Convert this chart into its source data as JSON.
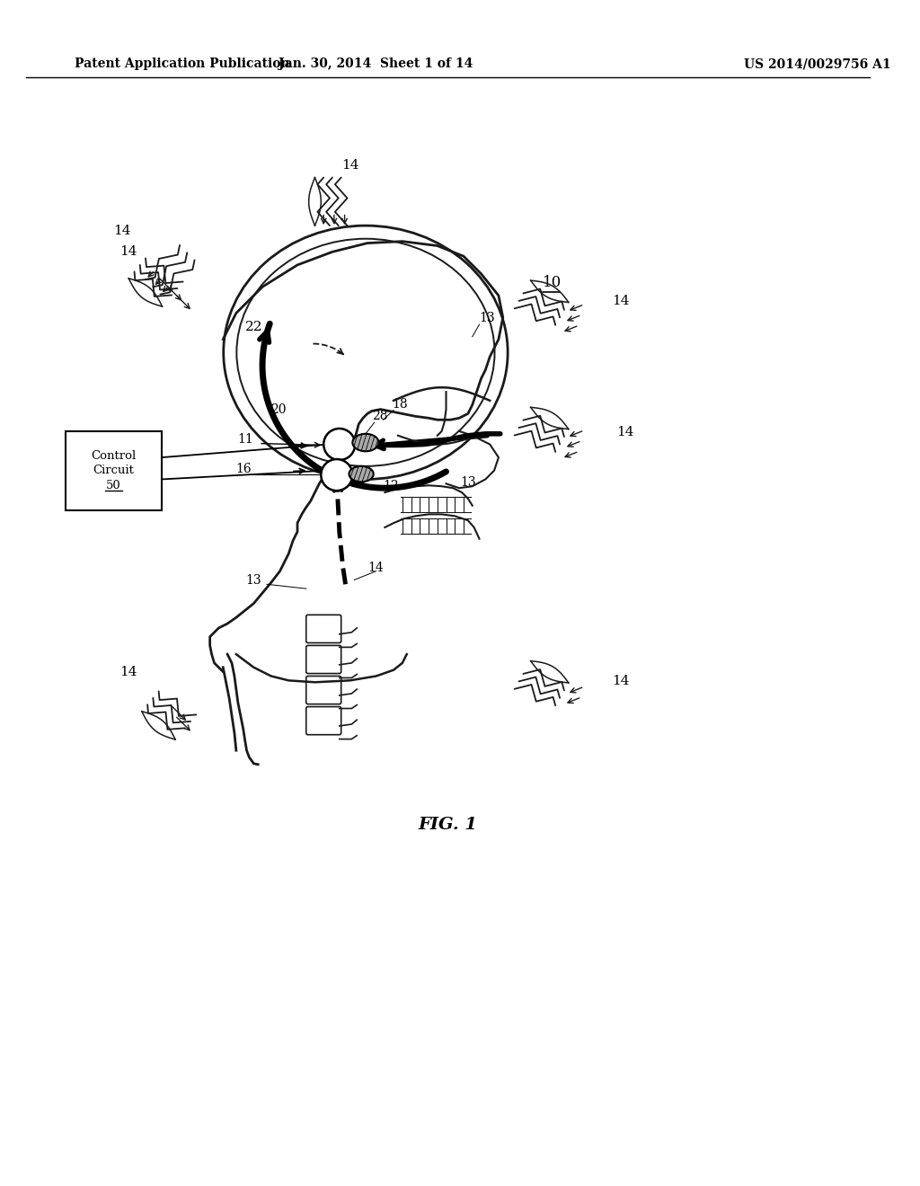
{
  "title": "FIG. 1",
  "header_left": "Patent Application Publication",
  "header_center": "Jan. 30, 2014  Sheet 1 of 14",
  "header_right": "US 2014/0029756 A1",
  "bg_color": "#ffffff",
  "label_10": "10",
  "label_14": "14",
  "label_22": "22",
  "label_20": "20",
  "label_28": "28",
  "label_18": "18",
  "label_11": "11",
  "label_16": "16",
  "label_12": "12",
  "label_13": "13",
  "label_50": "50",
  "control_box_text": "Control\nCircuit\n50"
}
